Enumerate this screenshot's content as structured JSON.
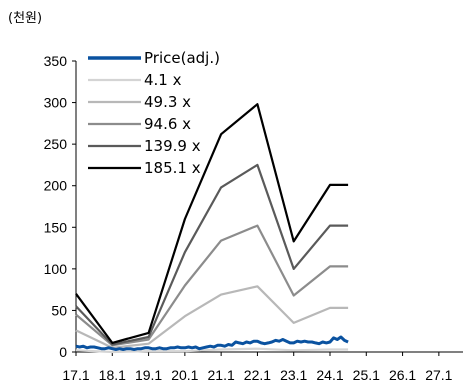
{
  "chart_data": {
    "type": "line",
    "unit_label": "(천원)",
    "x_ticks": [
      "17.1",
      "18.1",
      "19.1",
      "20.1",
      "21.1",
      "22.1",
      "23.1",
      "24.1",
      "25.1",
      "26.1",
      "27.1"
    ],
    "ylim": [
      0,
      350
    ],
    "y_ticks": [
      "0",
      "50",
      "100",
      "150",
      "200",
      "250",
      "300",
      "350"
    ],
    "grid": false,
    "legend_position": "top-left",
    "series": [
      {
        "name": "Price(adj.)",
        "color": "#0a52a0",
        "x": [
          0,
          0.1,
          0.2,
          0.3,
          0.4,
          0.5,
          0.6,
          0.7,
          0.8,
          0.9,
          1.0,
          1.1,
          1.2,
          1.3,
          1.4,
          1.5,
          1.6,
          1.7,
          1.8,
          1.9,
          2.0,
          2.1,
          2.2,
          2.3,
          2.4,
          2.5,
          2.6,
          2.7,
          2.8,
          2.9,
          3.0,
          3.1,
          3.2,
          3.3,
          3.4,
          3.5,
          3.6,
          3.7,
          3.8,
          3.9,
          4.0,
          4.1,
          4.2,
          4.3,
          4.4,
          4.5,
          4.6,
          4.7,
          4.8,
          4.9,
          5.0,
          5.1,
          5.2,
          5.3,
          5.4,
          5.5,
          5.6,
          5.7,
          5.8,
          5.9,
          6.0,
          6.1,
          6.2,
          6.3,
          6.4,
          6.5,
          6.6,
          6.7,
          6.8,
          6.9,
          7.0,
          7.1,
          7.2,
          7.3,
          7.4,
          7.5
        ],
        "y": [
          7,
          6,
          7,
          5,
          6,
          6,
          5,
          4,
          4,
          5,
          4,
          3,
          4,
          3,
          4,
          4,
          3,
          4,
          4,
          5,
          5,
          4,
          4,
          5,
          4,
          4,
          5,
          5,
          6,
          5,
          5,
          6,
          5,
          6,
          4,
          5,
          6,
          7,
          6,
          8,
          8,
          7,
          9,
          8,
          12,
          11,
          10,
          12,
          11,
          13,
          13,
          11,
          10,
          11,
          12,
          14,
          13,
          15,
          13,
          11,
          11,
          13,
          12,
          13,
          12,
          12,
          11,
          10,
          12,
          11,
          12,
          17,
          15,
          18,
          14,
          12
        ]
      },
      {
        "name": "4.1 x",
        "color": "#d4d4d4",
        "x": [
          0,
          1,
          2,
          3,
          4,
          5,
          6,
          7,
          7.5
        ],
        "y": [
          2,
          0,
          1,
          1,
          3,
          4,
          2,
          3,
          3
        ]
      },
      {
        "name": "49.3 x",
        "color": "#b8b8b8",
        "x": [
          0,
          1,
          2,
          3,
          4,
          5,
          6,
          7,
          7.5
        ],
        "y": [
          26,
          5,
          10,
          43,
          69,
          79,
          35,
          53,
          53
        ]
      },
      {
        "name": "94.6 x",
        "color": "#8c8c8c",
        "x": [
          0,
          1,
          2,
          3,
          4,
          5,
          6,
          7,
          7.5
        ],
        "y": [
          45,
          8,
          15,
          80,
          134,
          152,
          68,
          103,
          103
        ]
      },
      {
        "name": "139.9 x",
        "color": "#5a5a5a",
        "x": [
          0,
          1,
          2,
          3,
          4,
          5,
          6,
          7,
          7.5
        ],
        "y": [
          55,
          9,
          18,
          120,
          198,
          225,
          100,
          152,
          152
        ]
      },
      {
        "name": "185.1 x",
        "color": "#000000",
        "x": [
          0,
          1,
          2,
          3,
          4,
          5,
          6,
          7,
          7.5
        ],
        "y": [
          70,
          11,
          23,
          160,
          262,
          298,
          133,
          201,
          201
        ]
      }
    ]
  }
}
